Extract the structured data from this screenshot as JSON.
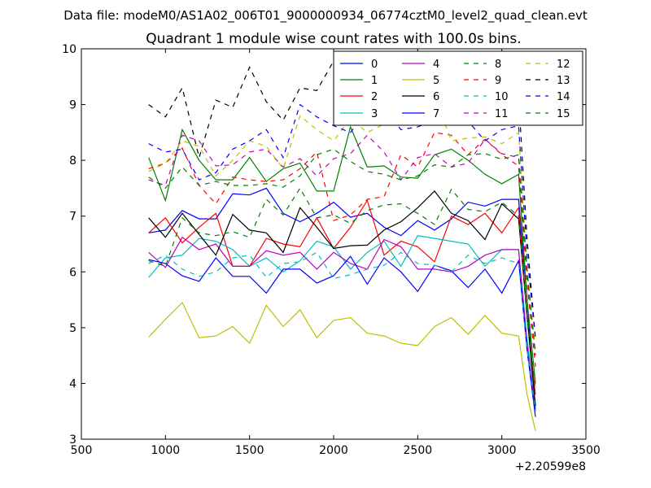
{
  "suptitle": "Data file: modeM0/AS1A02_006T01_9000000934_06774cztM0_level2_quad_clean.evt",
  "chart_data": {
    "type": "line",
    "title": "Quadrant 1 module wise count rates with 100.0s bins.",
    "xlabel": "",
    "ylabel": "",
    "x_offset_label": "+2.20599e8",
    "xlim": [
      500,
      3500
    ],
    "ylim": [
      3,
      10
    ],
    "xticks": [
      500,
      1000,
      1500,
      2000,
      2500,
      3000,
      3500
    ],
    "yticks": [
      3,
      4,
      5,
      6,
      7,
      8,
      9,
      10
    ],
    "x": [
      900,
      1000,
      1100,
      1200,
      1300,
      1400,
      1500,
      1600,
      1700,
      1800,
      1900,
      2000,
      2100,
      2200,
      2300,
      2400,
      2500,
      2600,
      2700,
      2800,
      2900,
      3000,
      3100,
      3150,
      3200
    ],
    "legend_position": "top-right",
    "series": [
      {
        "name": "0",
        "color": "#0000ff",
        "dash": "solid",
        "values": [
          6.7,
          6.75,
          7.1,
          6.95,
          6.95,
          7.4,
          7.38,
          7.5,
          7.05,
          6.9,
          7.05,
          7.25,
          6.98,
          7.05,
          6.8,
          6.65,
          6.92,
          6.75,
          6.95,
          7.25,
          7.18,
          7.3,
          7.3,
          5.5,
          3.55
        ]
      },
      {
        "name": "1",
        "color": "#008000",
        "dash": "solid",
        "values": [
          8.05,
          7.28,
          8.55,
          8.0,
          7.65,
          7.65,
          8.05,
          7.62,
          7.85,
          7.95,
          7.45,
          7.45,
          8.6,
          7.88,
          7.9,
          7.7,
          7.68,
          8.1,
          8.2,
          8.0,
          7.75,
          7.58,
          7.75,
          5.5,
          4.0
        ]
      },
      {
        "name": "2",
        "color": "#ff0000",
        "dash": "solid",
        "values": [
          6.7,
          6.97,
          6.52,
          6.8,
          7.05,
          6.1,
          6.1,
          6.6,
          6.5,
          6.45,
          6.97,
          6.42,
          6.8,
          7.28,
          6.3,
          6.55,
          6.45,
          6.18,
          7.0,
          6.85,
          7.05,
          6.7,
          7.15,
          5.2,
          3.8
        ]
      },
      {
        "name": "3",
        "color": "#00bfbf",
        "dash": "solid",
        "values": [
          5.9,
          6.25,
          6.3,
          6.6,
          6.55,
          6.4,
          6.1,
          6.25,
          6.0,
          6.2,
          6.55,
          6.45,
          6.05,
          6.35,
          6.55,
          6.1,
          6.65,
          6.6,
          6.55,
          6.5,
          6.1,
          6.4,
          6.4,
          4.8,
          3.55
        ]
      },
      {
        "name": "4",
        "color": "#bf00bf",
        "dash": "solid",
        "values": [
          6.35,
          6.08,
          6.62,
          6.4,
          6.5,
          6.1,
          6.1,
          6.38,
          6.3,
          6.35,
          6.05,
          6.35,
          6.15,
          6.05,
          6.58,
          6.45,
          6.05,
          6.05,
          6.0,
          6.1,
          6.3,
          6.4,
          6.4,
          4.7,
          3.5
        ]
      },
      {
        "name": "5",
        "color": "#bfbf00",
        "dash": "solid",
        "values": [
          4.83,
          5.15,
          5.45,
          4.82,
          4.85,
          5.02,
          4.72,
          5.4,
          5.02,
          5.32,
          4.82,
          5.13,
          5.18,
          4.9,
          4.85,
          4.72,
          4.68,
          5.02,
          5.18,
          4.88,
          5.22,
          4.9,
          4.85,
          3.8,
          3.15
        ]
      },
      {
        "name": "6",
        "color": "#000000",
        "dash": "solid",
        "values": [
          6.97,
          6.62,
          7.05,
          6.67,
          6.3,
          7.03,
          6.75,
          6.7,
          6.35,
          7.15,
          6.8,
          6.42,
          6.47,
          6.48,
          6.75,
          6.9,
          7.15,
          7.45,
          7.05,
          6.92,
          6.58,
          7.22,
          6.95,
          5.2,
          3.6
        ]
      },
      {
        "name": "7",
        "color": "#0000ff",
        "dash": "solid",
        "values": [
          6.22,
          6.15,
          5.93,
          5.83,
          6.25,
          5.92,
          5.92,
          5.62,
          6.05,
          6.05,
          5.8,
          5.93,
          6.28,
          5.78,
          6.25,
          6.0,
          5.65,
          6.12,
          6.02,
          5.72,
          6.05,
          5.62,
          6.2,
          4.6,
          3.4
        ]
      },
      {
        "name": "8",
        "color": "#008000",
        "dash": "dashed",
        "values": [
          6.2,
          6.1,
          6.97,
          6.7,
          6.65,
          6.72,
          6.62,
          7.3,
          7.02,
          7.5,
          6.97,
          7.02,
          6.87,
          7.1,
          7.2,
          7.22,
          7.05,
          6.85,
          7.48,
          7.12,
          7.08,
          7.25,
          7.0,
          5.2,
          3.9
        ]
      },
      {
        "name": "9",
        "color": "#ff0000",
        "dash": "dashed",
        "values": [
          7.85,
          7.95,
          8.22,
          7.55,
          7.22,
          7.7,
          7.65,
          7.62,
          7.65,
          7.85,
          8.15,
          6.92,
          7.02,
          7.3,
          7.35,
          8.1,
          7.88,
          8.5,
          8.45,
          8.1,
          8.38,
          8.1,
          7.9,
          5.8,
          4.3
        ]
      },
      {
        "name": "10",
        "color": "#00bfbf",
        "dash": "dashed",
        "values": [
          6.15,
          6.3,
          6.05,
          5.92,
          6.0,
          6.25,
          6.3,
          5.9,
          6.15,
          6.18,
          6.35,
          5.88,
          5.95,
          6.05,
          6.12,
          6.35,
          6.15,
          6.12,
          6.0,
          6.3,
          6.15,
          6.25,
          6.15,
          4.6,
          3.5
        ]
      },
      {
        "name": "11",
        "color": "#bf00bf",
        "dash": "dashed",
        "values": [
          7.65,
          7.55,
          8.45,
          8.35,
          7.9,
          7.92,
          8.15,
          8.2,
          7.88,
          8.03,
          7.72,
          8.03,
          8.12,
          8.45,
          8.15,
          7.65,
          8.05,
          8.12,
          7.88,
          7.95,
          8.38,
          8.12,
          8.05,
          6.0,
          4.5
        ]
      },
      {
        "name": "12",
        "color": "#bfbf00",
        "dash": "dashed",
        "values": [
          7.8,
          7.95,
          8.35,
          8.25,
          7.72,
          8.0,
          8.35,
          8.25,
          7.85,
          8.8,
          8.55,
          8.35,
          8.75,
          8.5,
          8.65,
          8.75,
          8.8,
          9.15,
          8.35,
          8.4,
          8.42,
          8.3,
          8.5,
          6.1,
          4.6
        ]
      },
      {
        "name": "13",
        "color": "#000000",
        "dash": "dashed",
        "values": [
          9.0,
          8.78,
          9.3,
          8.05,
          9.08,
          8.95,
          9.67,
          9.05,
          8.72,
          9.3,
          9.25,
          9.78,
          9.48,
          9.18,
          9.35,
          9.45,
          8.92,
          9.28,
          9.1,
          9.1,
          8.6,
          9.1,
          9.15,
          6.6,
          4.8
        ]
      },
      {
        "name": "14",
        "color": "#0000ff",
        "dash": "dashed",
        "values": [
          8.3,
          8.15,
          8.2,
          7.65,
          7.78,
          8.2,
          8.35,
          8.55,
          8.05,
          9.0,
          8.78,
          8.62,
          8.5,
          8.9,
          8.92,
          8.55,
          8.6,
          8.72,
          8.72,
          8.7,
          8.35,
          8.55,
          8.62,
          6.3,
          4.8
        ]
      },
      {
        "name": "15",
        "color": "#008000",
        "dash": "dashed",
        "values": [
          7.7,
          7.5,
          7.88,
          7.55,
          7.62,
          7.55,
          7.55,
          7.58,
          7.52,
          7.72,
          8.1,
          8.2,
          7.98,
          7.8,
          7.75,
          7.65,
          7.72,
          7.92,
          7.88,
          8.1,
          8.12,
          8.02,
          8.1,
          6.0,
          4.5
        ]
      }
    ]
  }
}
